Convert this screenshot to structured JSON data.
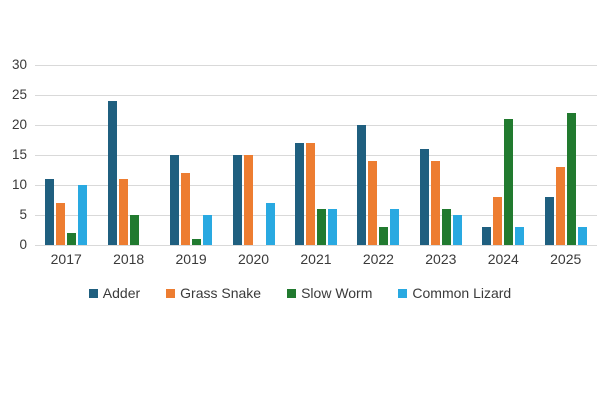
{
  "chart_data": {
    "type": "bar",
    "categories": [
      "2017",
      "2018",
      "2019",
      "2020",
      "2021",
      "2022",
      "2023",
      "2024",
      "2025"
    ],
    "series": [
      {
        "name": "Adder",
        "color": "#1F5F7F",
        "values": [
          11,
          24,
          15,
          15,
          17,
          20,
          16,
          3,
          8
        ]
      },
      {
        "name": "Grass Snake",
        "color": "#ED7D31",
        "values": [
          7,
          11,
          12,
          15,
          17,
          14,
          14,
          8,
          13
        ]
      },
      {
        "name": "Slow Worm",
        "color": "#217A2F",
        "values": [
          2,
          5,
          1,
          0,
          6,
          3,
          6,
          21,
          22
        ]
      },
      {
        "name": "Common Lizard",
        "color": "#29A9E1",
        "values": [
          10,
          0,
          5,
          7,
          6,
          6,
          5,
          3,
          3
        ]
      }
    ],
    "xlabel": "",
    "ylabel": "",
    "ylim": [
      0,
      30
    ],
    "yticks": [
      0,
      5,
      10,
      15,
      20,
      25,
      30
    ],
    "grid": true,
    "legend_position": "bottom"
  },
  "colors": {
    "grid": "#D9D9D9",
    "text": "#3A3A3A",
    "background": "#FFFFFF"
  }
}
